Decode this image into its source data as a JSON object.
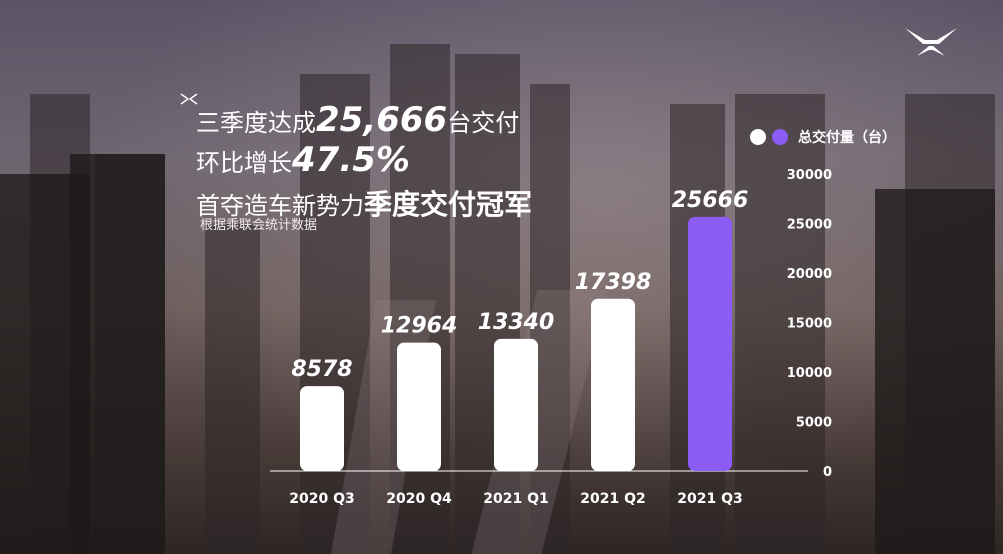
{
  "headline": {
    "line1_prefix": "三季度达成",
    "line1_number": "25,666",
    "line1_suffix": "台交付",
    "line2_prefix": "环比增长",
    "line2_number": "47.5%",
    "line3_prefix": "首夺造车新势力",
    "line3_emphasis": "季度交付冠军",
    "source": "根据乘联会统计数据"
  },
  "colors": {
    "bar_default": "#ffffff",
    "bar_highlight": "#8b5cf6",
    "axis": "#ffffff"
  },
  "icons": {
    "brand": "xpeng-logo-icon",
    "headline_mark": "xpeng-mark-icon"
  },
  "chart_data": {
    "type": "bar",
    "categories": [
      "2020 Q3",
      "2020 Q4",
      "2021 Q1",
      "2021 Q2",
      "2021 Q3"
    ],
    "series": [
      {
        "name": "总交付量（台）",
        "values": [
          8578,
          12964,
          13340,
          17398,
          25666
        ]
      }
    ],
    "highlight_index": 4,
    "ylim": [
      0,
      30000
    ],
    "yticks": [
      0,
      5000,
      10000,
      15000,
      20000,
      25000,
      30000
    ],
    "legend_label": "总交付量（台）",
    "legend_position": "top-right"
  }
}
